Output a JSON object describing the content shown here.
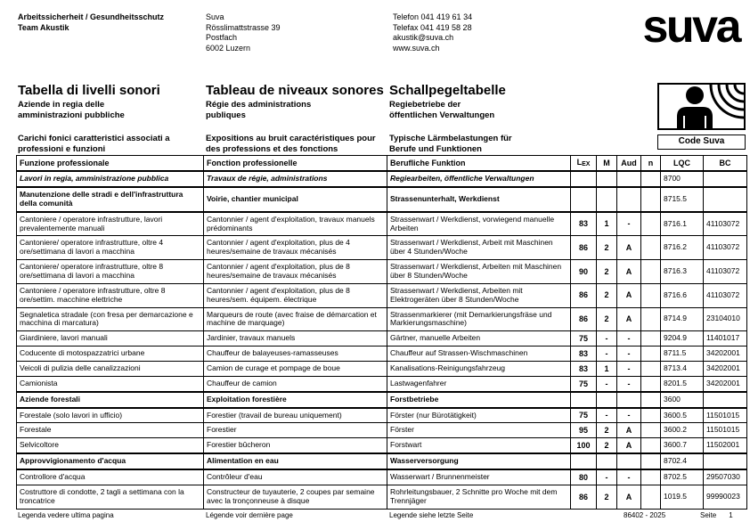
{
  "header": {
    "department": [
      "Arbeitssicherheit / Gesundheitsschutz",
      "Team Akustik"
    ],
    "address": [
      "Suva",
      "Rösslimattstrasse 39",
      "Postfach",
      "6002 Luzern"
    ],
    "contact": [
      "Telefon 041 419 61 34",
      "Telefax 041 419 58 28",
      "akustik@suva.ch",
      "www.suva.ch"
    ],
    "logo": "suva"
  },
  "titles": {
    "it": {
      "title": "Tabella di livelli sonori",
      "subtitle": "Aziende in regia delle\namministrazioni pubbliche",
      "caption": "Carichi fonici caratteristici associati a\nprofessioni e funzioni"
    },
    "fr": {
      "title": "Tableau de niveaux sonores",
      "subtitle": "Régie des administrations\npubliques",
      "caption": "Expositions au bruit caractéristiques pour\ndes professions et des fonctions"
    },
    "de": {
      "title": "Schallpegeltabelle",
      "subtitle": "Regiebetriebe der\nöffentlichen Verwaltungen",
      "caption": "Typische Lärmbelastungen für\nBerufe und Funktionen"
    }
  },
  "noise_icon": "person-with-sound-waves-icon",
  "code_suva_label": "Code Suva",
  "table": {
    "headers": {
      "it": "Funzione professionale",
      "fr": "Fonction professionelle",
      "de": "Berufliche Funktion",
      "lex_main": "L",
      "lex_sub": "EX",
      "m": "M",
      "aud": "Aud",
      "n": "n",
      "lqc": "LQC",
      "bc": "BC"
    },
    "rows": [
      {
        "style": "section-italic",
        "it": "Lavori in regia, amministrazione pubblica",
        "fr": "Travaux de régie, administrations",
        "de": "Regiearbeiten, öffentliche Verwaltungen",
        "lex": "",
        "m": "",
        "aud": "",
        "n": "",
        "lqc": "8700",
        "bc": ""
      },
      {
        "style": "section",
        "it": "Manutenzione delle stradi e dell'infrastruttura della comunità",
        "fr": "Voirie, chantier municipal",
        "de": "Strassenunterhalt, Werkdienst",
        "lex": "",
        "m": "",
        "aud": "",
        "n": "",
        "lqc": "8715.5",
        "bc": ""
      },
      {
        "it": "Cantoniere / operatore infrastrutture, lavori prevalentemente manuali",
        "fr": "Cantonnier / agent d'exploitation, travaux manuels prédominants",
        "de": "Strassenwart / Werkdienst, vorwiegend manuelle Arbeiten",
        "lex": "83",
        "m": "1",
        "aud": "-",
        "n": "",
        "lqc": "8716.1",
        "bc": "41103072"
      },
      {
        "it": "Cantoniere/ operatore infrastrutture, oltre 4 ore/settimana di lavori a macchina",
        "fr": "Cantonnier / agent d'exploitation, plus de 4 heures/semaine de travaux mécanisés",
        "de": "Strassenwart / Werkdienst, Arbeit mit Maschinen über 4 Stunden/Woche",
        "lex": "86",
        "m": "2",
        "aud": "A",
        "n": "",
        "lqc": "8716.2",
        "bc": "41103072"
      },
      {
        "it": "Cantoniere/ operatore infrastrutture, oltre 8 ore/settimana di lavori a macchina",
        "fr": "Cantonnier / agent d'exploitation, plus de 8 heures/semaine de travaux mécanisés",
        "de": "Strassenwart / Werkdienst, Arbeiten mit Maschinen über 8 Stunden/Woche",
        "lex": "90",
        "m": "2",
        "aud": "A",
        "n": "",
        "lqc": "8716.3",
        "bc": "41103072"
      },
      {
        "it": "Cantoniere / operatore infrastrutture, oltre 8 ore/settim. macchine elettriche",
        "fr": "Cantonnier / agent d'exploitation, plus de 8 heures/sem. équipem. électrique",
        "de": "Strassenwart / Werkdienst, Arbeiten mit Elektrogeräten über 8 Stunden/Woche",
        "lex": "86",
        "m": "2",
        "aud": "A",
        "n": "",
        "lqc": "8716.6",
        "bc": "41103072"
      },
      {
        "it": "Segnaletica stradale (con fresa per demarcazione e macchina di marcatura)",
        "fr": "Marqueurs de route (avec fraise de démarcation et machine de marquage)",
        "de": "Strassenmarkierer (mit Demarkierungsfräse und Markierungsmaschine)",
        "lex": "86",
        "m": "2",
        "aud": "A",
        "n": "",
        "lqc": "8714.9",
        "bc": "23104010"
      },
      {
        "it": "Giardiniere, lavori manuali",
        "fr": "Jardinier, travaux manuels",
        "de": "Gärtner, manuelle Arbeiten",
        "lex": "75",
        "m": "-",
        "aud": "-",
        "n": "",
        "lqc": "9204.9",
        "bc": "11401017"
      },
      {
        "it": "Coducente di motospazzatrici urbane",
        "fr": "Chauffeur de balayeuses-ramasseuses",
        "de": "Chauffeur auf Strassen-Wischmaschinen",
        "lex": "83",
        "m": "-",
        "aud": "-",
        "n": "",
        "lqc": "8711.5",
        "bc": "34202001"
      },
      {
        "it": "Veicoli di pulizia delle canalizzazioni",
        "fr": "Camion de curage et pompage de boue",
        "de": "Kanalisations-Reinigungsfahrzeug",
        "lex": "83",
        "m": "1",
        "aud": "-",
        "n": "",
        "lqc": "8713.4",
        "bc": "34202001"
      },
      {
        "it": "Camionista",
        "fr": "Chauffeur de camion",
        "de": "Lastwagenfahrer",
        "lex": "75",
        "m": "-",
        "aud": "-",
        "n": "",
        "lqc": "8201.5",
        "bc": "34202001"
      },
      {
        "style": "section",
        "it": "Aziende forestali",
        "fr": "Exploitation forestière",
        "de": "Forstbetriebe",
        "lex": "",
        "m": "",
        "aud": "",
        "n": "",
        "lqc": "3600",
        "bc": ""
      },
      {
        "it": "Forestale (solo lavori in ufficio)",
        "fr": "Forestier (travail de bureau uniquement)",
        "de": "Förster (nur Bürotätigkeit)",
        "lex": "75",
        "m": "-",
        "aud": "-",
        "n": "",
        "lqc": "3600.5",
        "bc": "11501015"
      },
      {
        "it": "Forestale",
        "fr": "Forestier",
        "de": "Förster",
        "lex": "95",
        "m": "2",
        "aud": "A",
        "n": "",
        "lqc": "3600.2",
        "bc": "11501015"
      },
      {
        "it": "Selvicoltore",
        "fr": "Forestier bûcheron",
        "de": "Forstwart",
        "lex": "100",
        "m": "2",
        "aud": "A",
        "n": "",
        "lqc": "3600.7",
        "bc": "11502001"
      },
      {
        "style": "section",
        "it": "Approvvigionamento d'acqua",
        "fr": "Alimentation en eau",
        "de": "Wasserversorgung",
        "lex": "",
        "m": "",
        "aud": "",
        "n": "",
        "lqc": "8702.4",
        "bc": ""
      },
      {
        "it": "Controllore d'acqua",
        "fr": "Contrôleur d'eau",
        "de": "Wasserwart / Brunnenmeister",
        "lex": "80",
        "m": "-",
        "aud": "-",
        "n": "",
        "lqc": "8702.5",
        "bc": "29507030"
      },
      {
        "it": "Costruttore di condotte, 2 tagli a settimana con la troncatrice",
        "fr": "Constructeur de tuyauterie, 2 coupes par semaine avec la tronçonneuse à disque",
        "de": "Rohrleitungsbauer, 2 Schnitte pro Woche mit dem Trennjäger",
        "lex": "86",
        "m": "2",
        "aud": "A",
        "n": "",
        "lqc": "1019.5",
        "bc": "99990023"
      }
    ]
  },
  "footer": {
    "it": "Legenda vedere ultima pagina",
    "fr": "Légende voir dernière page",
    "de": "Legende siehe letzte Seite",
    "doc_number": "86402 - 2025",
    "page_label": "Seite",
    "page_number": "1"
  }
}
